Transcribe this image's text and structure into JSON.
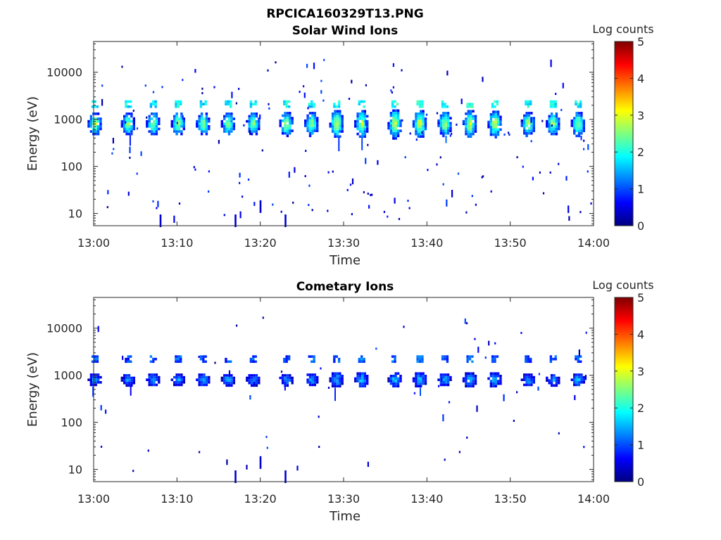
{
  "figure_title": "RPCICA160329T13.PNG",
  "colorbar": {
    "label": "Log counts",
    "ticks": [
      "0",
      "1",
      "2",
      "3",
      "4",
      "5"
    ],
    "colormap": "jet",
    "colormap_stops": [
      "#00007f",
      "#0000ff",
      "#007fff",
      "#00ffff",
      "#7fff7f",
      "#ffff00",
      "#ff7f00",
      "#ff0000",
      "#7f0000"
    ]
  },
  "chart_data": [
    {
      "type": "heatmap",
      "title": "Solar Wind Ions",
      "xlabel": "Time",
      "ylabel": "Energy (eV)",
      "x_range": [
        "13:00",
        "14:00"
      ],
      "x_ticks": [
        "13:00",
        "13:10",
        "13:20",
        "13:30",
        "13:40",
        "13:50",
        "14:00"
      ],
      "y_scale": "log",
      "ylim": [
        5.5,
        45000
      ],
      "y_ticks": [
        10,
        100,
        1000,
        10000
      ],
      "y_tick_labels": [
        "10",
        "100",
        "1000",
        "10000"
      ],
      "clim": [
        0,
        5
      ],
      "clabel": "Log counts",
      "main_band_ev": 800,
      "secondary_band_ev": 2000,
      "bursts": [
        {
          "time": "13:00",
          "peak_log_counts": 3.0,
          "energy_spread": 1.0
        },
        {
          "time": "13:04",
          "peak_log_counts": 2.9,
          "energy_spread": 1.0
        },
        {
          "time": "13:07",
          "peak_log_counts": 2.9,
          "energy_spread": 1.0
        },
        {
          "time": "13:10",
          "peak_log_counts": 3.0,
          "energy_spread": 1.0
        },
        {
          "time": "13:13",
          "peak_log_counts": 2.9,
          "energy_spread": 1.0
        },
        {
          "time": "13:16",
          "peak_log_counts": 2.8,
          "energy_spread": 1.0
        },
        {
          "time": "13:19",
          "peak_log_counts": 2.8,
          "energy_spread": 1.0
        },
        {
          "time": "13:23",
          "peak_log_counts": 3.1,
          "energy_spread": 1.05
        },
        {
          "time": "13:26",
          "peak_log_counts": 2.9,
          "energy_spread": 1.05
        },
        {
          "time": "13:29",
          "peak_log_counts": 3.2,
          "energy_spread": 1.2
        },
        {
          "time": "13:32",
          "peak_log_counts": 3.1,
          "energy_spread": 1.2
        },
        {
          "time": "13:36",
          "peak_log_counts": 3.2,
          "energy_spread": 1.25
        },
        {
          "time": "13:39",
          "peak_log_counts": 3.3,
          "energy_spread": 1.2
        },
        {
          "time": "13:42",
          "peak_log_counts": 3.0,
          "energy_spread": 1.05
        },
        {
          "time": "13:45",
          "peak_log_counts": 3.2,
          "energy_spread": 1.2
        },
        {
          "time": "13:48",
          "peak_log_counts": 3.2,
          "energy_spread": 1.15
        },
        {
          "time": "13:52",
          "peak_log_counts": 3.1,
          "energy_spread": 1.05
        },
        {
          "time": "13:55",
          "peak_log_counts": 3.0,
          "energy_spread": 1.0
        },
        {
          "time": "13:58",
          "peak_log_counts": 3.0,
          "energy_spread": 1.05
        }
      ],
      "low_energy_streaks": [
        {
          "time": "13:08",
          "energy_ev": 7
        },
        {
          "time": "13:17",
          "energy_ev": 7
        },
        {
          "time": "13:23",
          "energy_ev": 7
        },
        {
          "time": "13:20",
          "energy_ev": 14
        }
      ],
      "noise_density": 1.0
    },
    {
      "type": "heatmap",
      "title": "Cometary Ions",
      "xlabel": "Time",
      "ylabel": "Energy (eV)",
      "x_range": [
        "13:00",
        "14:00"
      ],
      "x_ticks": [
        "13:00",
        "13:10",
        "13:20",
        "13:30",
        "13:40",
        "13:50",
        "14:00"
      ],
      "y_scale": "log",
      "ylim": [
        5.5,
        45000
      ],
      "y_ticks": [
        10,
        100,
        1000,
        10000
      ],
      "y_tick_labels": [
        "10",
        "100",
        "1000",
        "10000"
      ],
      "clim": [
        0,
        5
      ],
      "clabel": "Log counts",
      "main_band_ev": 800,
      "secondary_band_ev": 2100,
      "bursts": [
        {
          "time": "13:00",
          "peak_log_counts": 1.6,
          "energy_spread": 0.6
        },
        {
          "time": "13:04",
          "peak_log_counts": 1.5,
          "energy_spread": 0.55
        },
        {
          "time": "13:07",
          "peak_log_counts": 1.7,
          "energy_spread": 0.6
        },
        {
          "time": "13:10",
          "peak_log_counts": 1.6,
          "energy_spread": 0.6
        },
        {
          "time": "13:13",
          "peak_log_counts": 1.7,
          "energy_spread": 0.6
        },
        {
          "time": "13:16",
          "peak_log_counts": 1.6,
          "energy_spread": 0.55
        },
        {
          "time": "13:19",
          "peak_log_counts": 1.5,
          "energy_spread": 0.55
        },
        {
          "time": "13:23",
          "peak_log_counts": 1.5,
          "energy_spread": 0.55
        },
        {
          "time": "13:26",
          "peak_log_counts": 1.6,
          "energy_spread": 0.6
        },
        {
          "time": "13:29",
          "peak_log_counts": 1.7,
          "energy_spread": 0.7
        },
        {
          "time": "13:32",
          "peak_log_counts": 1.8,
          "energy_spread": 0.7
        },
        {
          "time": "13:36",
          "peak_log_counts": 1.7,
          "energy_spread": 0.7
        },
        {
          "time": "13:39",
          "peak_log_counts": 1.7,
          "energy_spread": 0.7
        },
        {
          "time": "13:42",
          "peak_log_counts": 1.6,
          "energy_spread": 0.6
        },
        {
          "time": "13:45",
          "peak_log_counts": 1.7,
          "energy_spread": 0.7
        },
        {
          "time": "13:48",
          "peak_log_counts": 1.7,
          "energy_spread": 0.7
        },
        {
          "time": "13:52",
          "peak_log_counts": 1.6,
          "energy_spread": 0.6
        },
        {
          "time": "13:55",
          "peak_log_counts": 1.5,
          "energy_spread": 0.55
        },
        {
          "time": "13:58",
          "peak_log_counts": 1.7,
          "energy_spread": 0.6
        }
      ],
      "low_energy_streaks": [
        {
          "time": "13:17",
          "energy_ev": 7
        },
        {
          "time": "13:23",
          "energy_ev": 7
        },
        {
          "time": "13:20",
          "energy_ev": 14
        }
      ],
      "noise_density": 0.35
    }
  ]
}
